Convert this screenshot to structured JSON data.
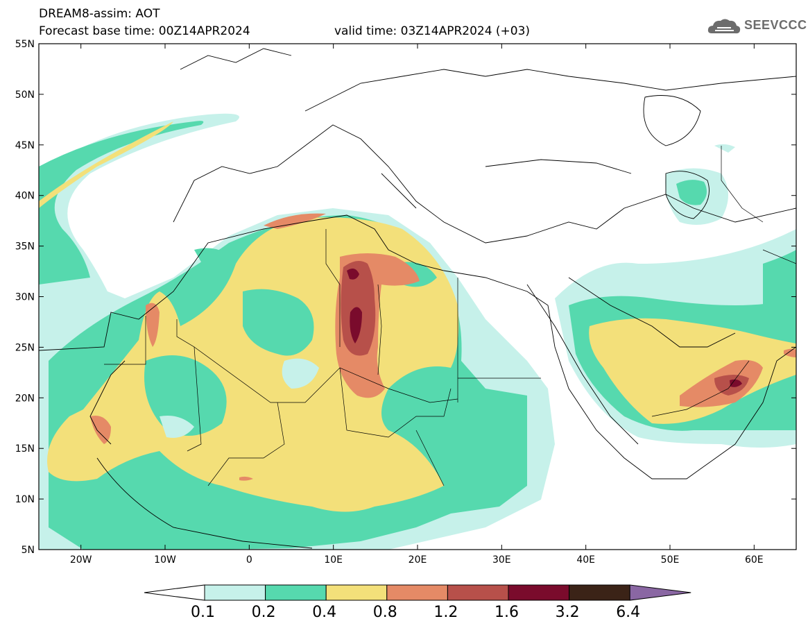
{
  "header": {
    "product": "DREAM8-assim: AOT",
    "base_time": "Forecast base time: 00Z14APR2024",
    "valid_time": "valid time: 03Z14APR2024 (+03)"
  },
  "logo": {
    "text": "SEEVCCC",
    "icon": "cloud-icon"
  },
  "map": {
    "lon_range": [
      -25,
      65
    ],
    "lat_range": [
      5,
      55
    ],
    "lat_ticks": [
      "55N",
      "50N",
      "45N",
      "40N",
      "35N",
      "30N",
      "25N",
      "20N",
      "15N",
      "10N",
      "5N"
    ],
    "lon_ticks": [
      "20W",
      "10W",
      "0",
      "10E",
      "20E",
      "30E",
      "40E",
      "50E",
      "60E"
    ]
  },
  "colorbar": {
    "labels": [
      "0.1",
      "0.2",
      "0.4",
      "0.8",
      "1.2",
      "1.6",
      "3.2",
      "6.4"
    ],
    "colors": [
      "#ffffff",
      "#c6f1ea",
      "#56d9ae",
      "#f3e07a",
      "#e58a66",
      "#b7504a",
      "#7a0b2c",
      "#3b2317",
      "#8a67a3"
    ]
  },
  "colors": {
    "c1": "#c6f1ea",
    "c2": "#56d9ae",
    "c3": "#f3e07a",
    "c4": "#e58a66",
    "c5": "#b7504a",
    "c6": "#7a0b2c"
  }
}
